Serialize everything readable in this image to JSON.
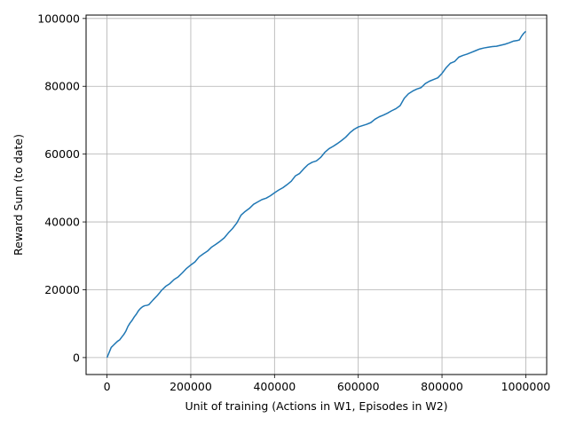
{
  "chart_data": {
    "type": "line",
    "title": "",
    "xlabel": "Unit of training (Actions in W1, Episodes in W2)",
    "ylabel": "Reward Sum (to date)",
    "xlim": [
      -50000,
      1050000
    ],
    "ylim": [
      -5000,
      101000
    ],
    "x_ticks": [
      0,
      200000,
      400000,
      600000,
      800000,
      1000000
    ],
    "x_tick_labels": [
      "0",
      "200000",
      "400000",
      "600000",
      "800000",
      "1000000"
    ],
    "y_ticks": [
      0,
      20000,
      40000,
      60000,
      80000,
      100000
    ],
    "y_tick_labels": [
      "0",
      "20000",
      "40000",
      "60000",
      "80000",
      "100000"
    ],
    "grid": true,
    "legend": "none",
    "line_color": "#1f77b4",
    "series": [
      {
        "x": [
          0,
          5000,
          10000,
          15000,
          20000,
          25000,
          30000,
          35000,
          40000,
          45000,
          50000,
          55000,
          60000,
          65000,
          70000,
          75000,
          80000,
          85000,
          90000,
          95000,
          100000,
          110000,
          120000,
          125000,
          130000,
          140000,
          150000,
          160000,
          170000,
          180000,
          190000,
          200000,
          210000,
          220000,
          230000,
          240000,
          250000,
          260000,
          270000,
          280000,
          290000,
          300000,
          310000,
          320000,
          330000,
          340000,
          350000,
          360000,
          370000,
          380000,
          390000,
          400000,
          410000,
          420000,
          430000,
          440000,
          450000,
          460000,
          470000,
          480000,
          490000,
          500000,
          510000,
          520000,
          530000,
          540000,
          550000,
          560000,
          570000,
          580000,
          590000,
          600000,
          610000,
          620000,
          630000,
          640000,
          650000,
          660000,
          670000,
          680000,
          690000,
          700000,
          710000,
          720000,
          730000,
          740000,
          750000,
          760000,
          770000,
          780000,
          790000,
          800000,
          810000,
          820000,
          830000,
          840000,
          850000,
          860000,
          870000,
          880000,
          890000,
          900000,
          910000,
          920000,
          930000,
          940000,
          950000,
          960000,
          970000,
          980000,
          985000,
          990000,
          995000,
          1000000
        ],
        "values": [
          0,
          1500,
          3000,
          3600,
          4200,
          4800,
          5200,
          6000,
          6800,
          7800,
          9200,
          10200,
          11000,
          12000,
          12800,
          13800,
          14500,
          15000,
          15300,
          15400,
          15600,
          17000,
          18300,
          19000,
          19800,
          21000,
          21800,
          23000,
          23800,
          25000,
          26300,
          27300,
          28200,
          29700,
          30600,
          31400,
          32600,
          33400,
          34300,
          35300,
          36800,
          38100,
          39700,
          42000,
          43100,
          44000,
          45200,
          45900,
          46600,
          47000,
          47700,
          48600,
          49400,
          50100,
          51000,
          52000,
          53600,
          54300,
          55700,
          56900,
          57600,
          58000,
          59000,
          60500,
          61600,
          62300,
          63100,
          64000,
          65000,
          66300,
          67300,
          68000,
          68400,
          68800,
          69300,
          70300,
          71000,
          71500,
          72100,
          72800,
          73400,
          74300,
          76500,
          77800,
          78600,
          79200,
          79600,
          80800,
          81500,
          82000,
          82500,
          83800,
          85500,
          86800,
          87300,
          88600,
          89100,
          89500,
          90000,
          90500,
          91000,
          91300,
          91500,
          91700,
          91800,
          92100,
          92400,
          92800,
          93300,
          93500,
          93700,
          94800,
          95600,
          96200
        ]
      }
    ]
  }
}
